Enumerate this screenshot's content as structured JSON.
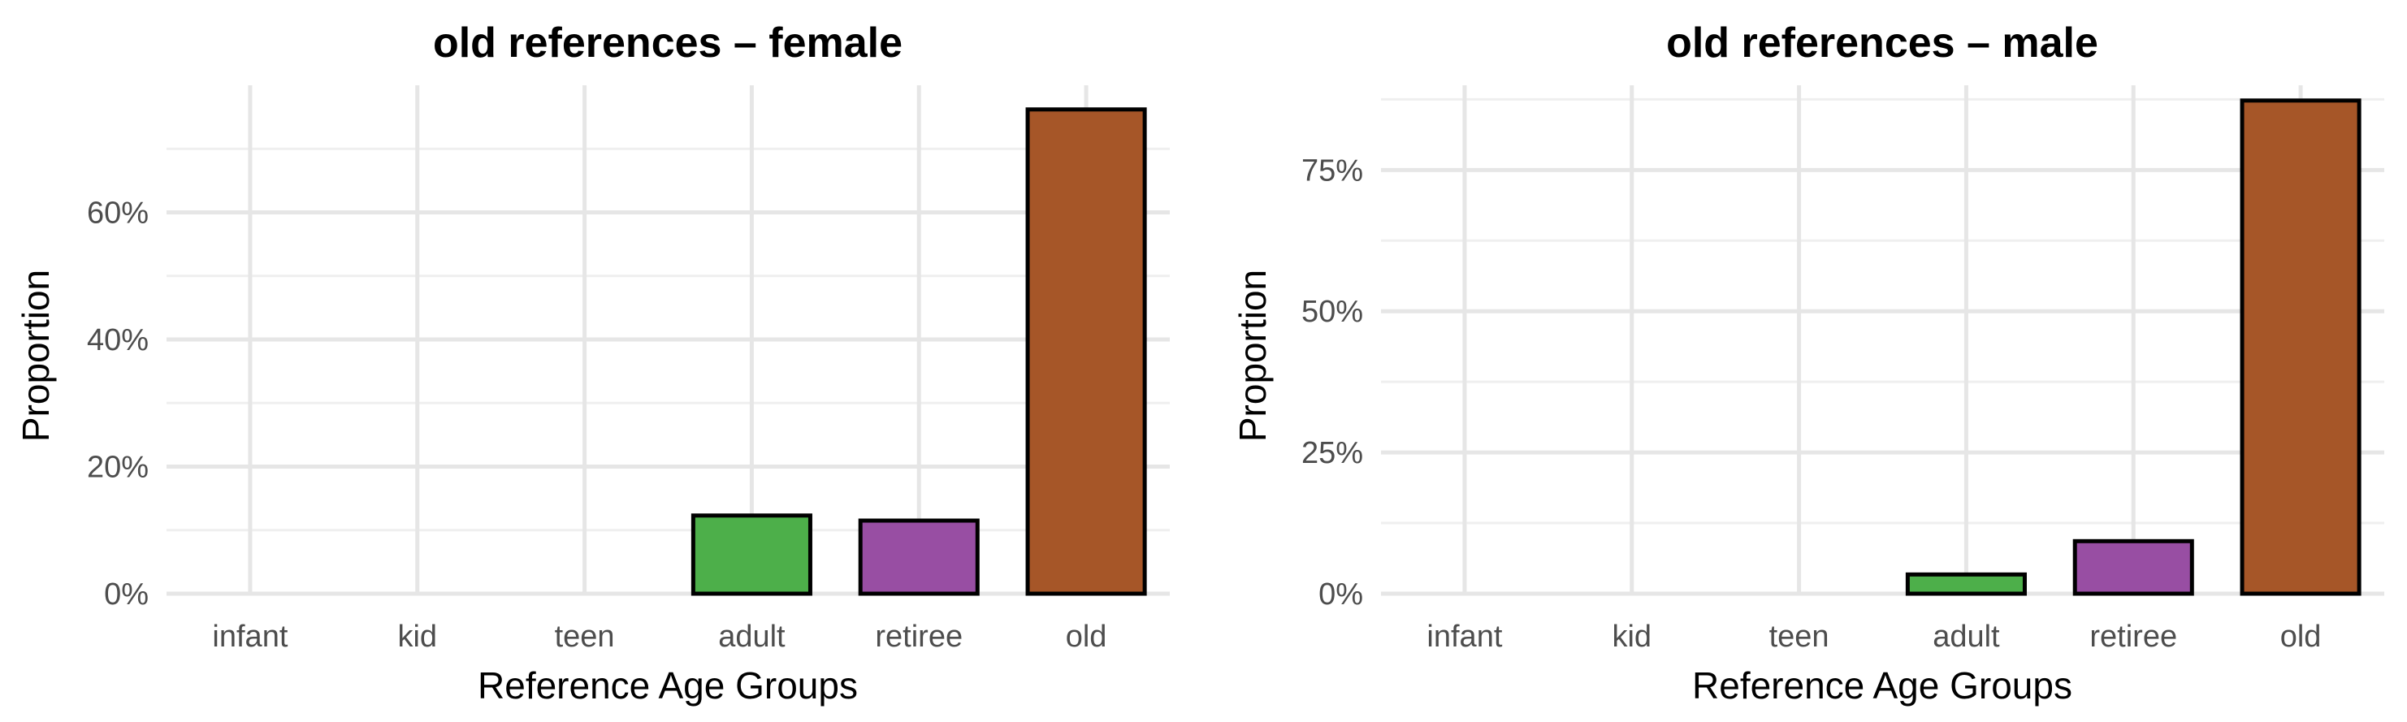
{
  "chart_data": [
    {
      "type": "bar",
      "title": "old references – female",
      "xlabel": "Reference Age Groups",
      "ylabel": "Proportion",
      "categories": [
        "infant",
        "kid",
        "teen",
        "adult",
        "retiree",
        "old"
      ],
      "values": [
        0.0,
        0.0,
        0.0,
        0.123,
        0.115,
        0.762
      ],
      "colors": [
        "#000000",
        "#000000",
        "#000000",
        "#4daf4a",
        "#984ea3",
        "#a65628"
      ],
      "ylim": [
        0,
        0.8
      ],
      "yticks": [
        0,
        0.2,
        0.4,
        0.6
      ],
      "ytick_labels": [
        "0%",
        "20%",
        "40%",
        "60%"
      ],
      "grid": true
    },
    {
      "type": "bar",
      "title": "old references – male",
      "xlabel": "Reference Age Groups",
      "ylabel": "Proportion",
      "categories": [
        "infant",
        "kid",
        "teen",
        "adult",
        "retiree",
        "old"
      ],
      "values": [
        0.0,
        0.0,
        0.0,
        0.034,
        0.093,
        0.873
      ],
      "colors": [
        "#000000",
        "#000000",
        "#000000",
        "#4daf4a",
        "#984ea3",
        "#a65628"
      ],
      "ylim": [
        0,
        0.9
      ],
      "yticks": [
        0,
        0.25,
        0.5,
        0.75
      ],
      "ytick_labels": [
        "0%",
        "25%",
        "50%",
        "75%"
      ],
      "grid": true
    }
  ]
}
